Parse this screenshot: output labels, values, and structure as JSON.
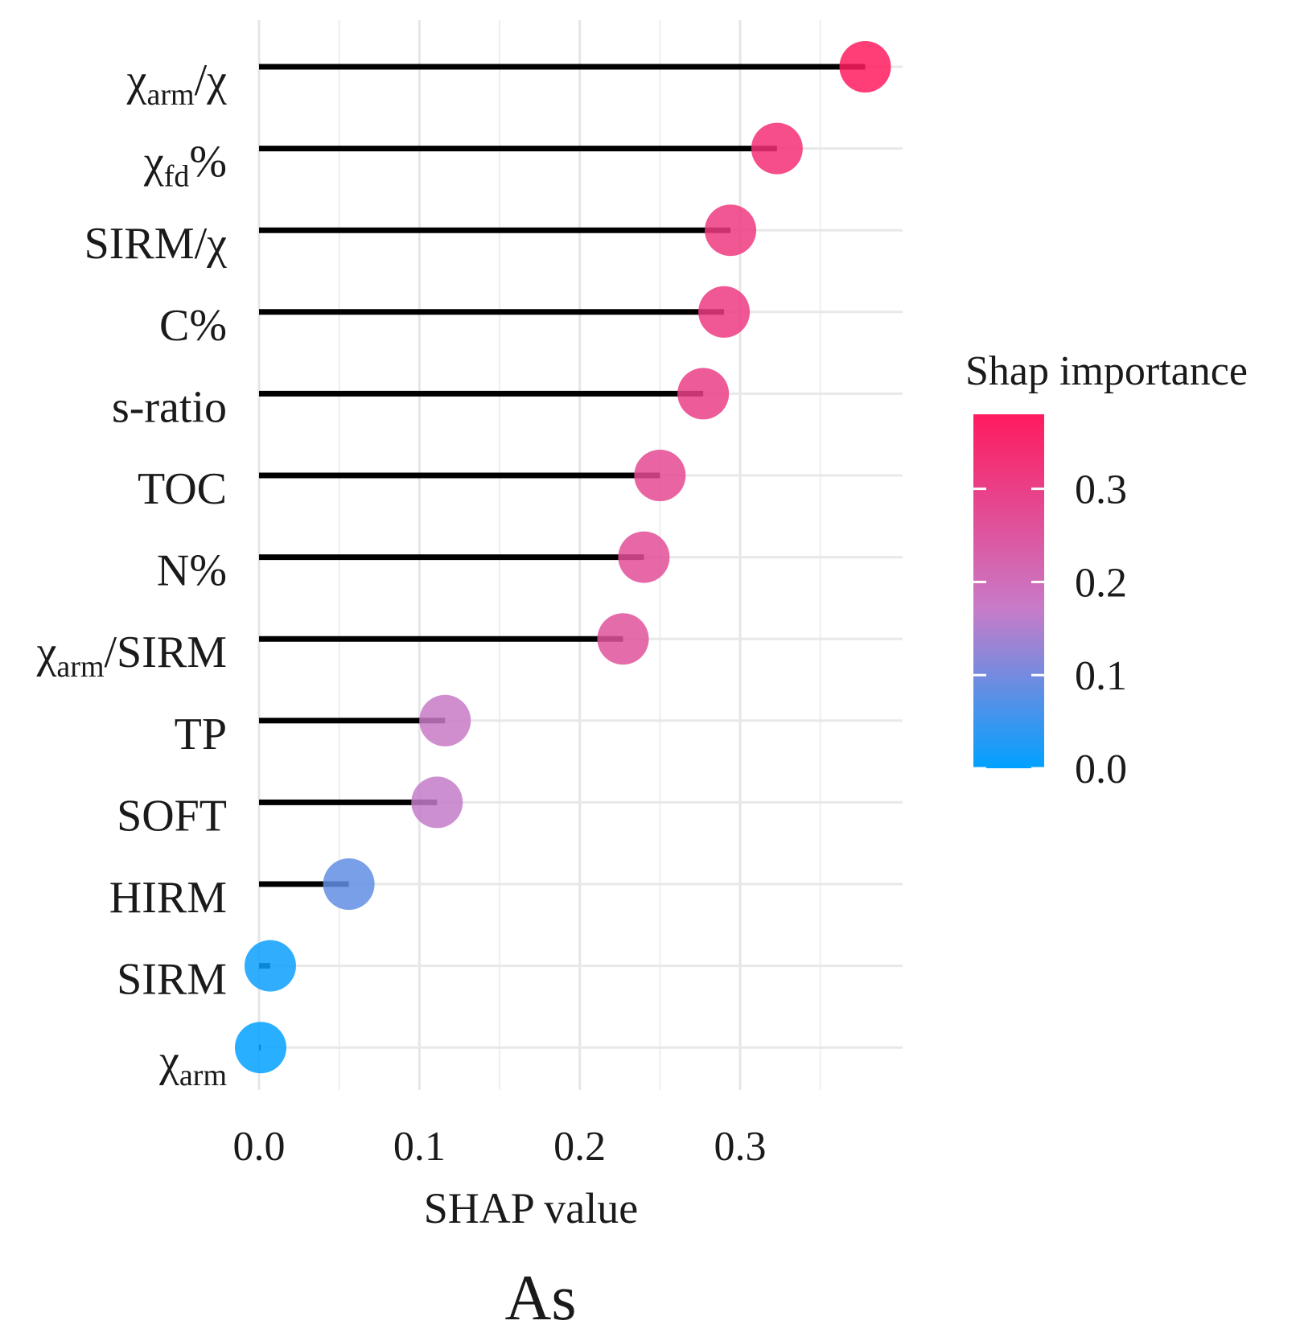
{
  "chart_data": {
    "type": "lollipop",
    "title": "As",
    "xlabel": "SHAP value",
    "ylabel": "",
    "xlim": [
      0,
      0.4
    ],
    "xticks": [
      0.0,
      0.1,
      0.2,
      0.3
    ],
    "xtick_labels": [
      "0.0",
      "0.1",
      "0.2",
      "0.3"
    ],
    "grid": true,
    "categories": [
      {
        "label": "χarm/χ",
        "base": "χ",
        "sub": "arm",
        "suffix": "/χ"
      },
      {
        "label": "χfd%",
        "base": "χ",
        "sub": "fd",
        "suffix": "%"
      },
      {
        "label": "SIRM/χ",
        "base": "SIRM/χ",
        "sub": "",
        "suffix": ""
      },
      {
        "label": "C%",
        "base": "C%",
        "sub": "",
        "suffix": ""
      },
      {
        "label": "s-ratio",
        "base": "s-ratio",
        "sub": "",
        "suffix": ""
      },
      {
        "label": "TOC",
        "base": "TOC",
        "sub": "",
        "suffix": ""
      },
      {
        "label": "N%",
        "base": "N%",
        "sub": "",
        "suffix": ""
      },
      {
        "label": "χarm/SIRM",
        "base": "χ",
        "sub": "arm",
        "suffix": "/SIRM"
      },
      {
        "label": "TP",
        "base": "TP",
        "sub": "",
        "suffix": ""
      },
      {
        "label": "SOFT",
        "base": "SOFT",
        "sub": "",
        "suffix": ""
      },
      {
        "label": "HIRM",
        "base": "HIRM",
        "sub": "",
        "suffix": ""
      },
      {
        "label": "SIRM",
        "base": "SIRM",
        "sub": "",
        "suffix": ""
      },
      {
        "label": "χarm",
        "base": "χ",
        "sub": "arm",
        "suffix": ""
      }
    ],
    "values": [
      0.378,
      0.323,
      0.294,
      0.29,
      0.277,
      0.25,
      0.24,
      0.227,
      0.116,
      0.111,
      0.056,
      0.007,
      0.001
    ],
    "color_scale": {
      "title": "Shap importance",
      "range": [
        0,
        0.38
      ],
      "ticks": [
        0.0,
        0.1,
        0.2,
        0.3
      ],
      "tick_labels": [
        "0.0",
        "0.1",
        "0.2",
        "0.3"
      ],
      "low_color": "#00a1ff",
      "mid_color": "#c87bc8",
      "high_color": "#ff1a5e"
    },
    "legend_position": "right"
  }
}
